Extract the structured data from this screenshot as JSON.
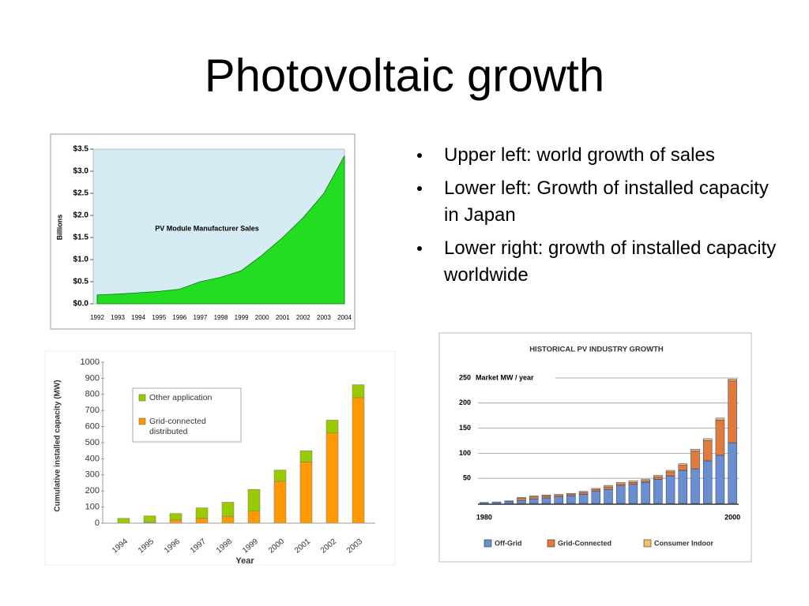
{
  "title": "Photovoltaic growth",
  "bullets": [
    "Upper left: world growth of sales",
    "Lower left: Growth of installed capacity in Japan",
    "Lower right: growth of installed capacity worldwide"
  ],
  "chart_data": [
    {
      "type": "area",
      "title": "PV Module Manufacturer Sales",
      "y_label": "Billions",
      "categories": [
        "1992",
        "1993",
        "1994",
        "1995",
        "1996",
        "1997",
        "1998",
        "1999",
        "2000",
        "2001",
        "2002",
        "2003",
        "2004"
      ],
      "values": [
        0.2,
        0.22,
        0.25,
        0.28,
        0.33,
        0.5,
        0.6,
        0.75,
        1.1,
        1.5,
        1.95,
        2.5,
        3.35
      ],
      "color": "#22dd22",
      "background": "#d6ecf5",
      "ylim": [
        0,
        3.5
      ],
      "yticks": [
        {
          "value": 0,
          "label": "$0.0"
        },
        {
          "value": 0.5,
          "label": "$0.5"
        },
        {
          "value": 1,
          "label": "$1.0"
        },
        {
          "value": 1.5,
          "label": "$1.5"
        },
        {
          "value": 2,
          "label": "$2.0"
        },
        {
          "value": 2.5,
          "label": "$2.5"
        },
        {
          "value": 3,
          "label": "$3.0"
        },
        {
          "value": 3.5,
          "label": "$3.5"
        }
      ]
    },
    {
      "type": "bar",
      "stacked": true,
      "y_label": "Cumulative installed capacity (MW)",
      "x_label": "Year",
      "categories": [
        "1994",
        "1995",
        "1996",
        "1997",
        "1998",
        "1999",
        "2000",
        "2001",
        "2002",
        "2003"
      ],
      "series": [
        {
          "name": "Grid-connected distributed",
          "color": "#ff9900",
          "values": [
            0,
            5,
            20,
            30,
            40,
            75,
            260,
            380,
            560,
            780
          ]
        },
        {
          "name": "Other application",
          "color": "#99cc00",
          "values": [
            30,
            40,
            40,
            65,
            90,
            135,
            70,
            70,
            80,
            80
          ]
        }
      ],
      "ylim": [
        0,
        1000
      ],
      "yticks": [
        0,
        100,
        200,
        300,
        400,
        500,
        600,
        700,
        800,
        900,
        1000
      ]
    },
    {
      "type": "bar",
      "stacked": true,
      "title": "HISTORICAL PV INDUSTRY GROWTH",
      "y_label": "Market MW / year",
      "grid": true,
      "categories": [
        "1980",
        null,
        null,
        null,
        null,
        null,
        null,
        null,
        null,
        null,
        null,
        null,
        null,
        null,
        null,
        null,
        null,
        null,
        null,
        null,
        "2000"
      ],
      "series": [
        {
          "name": "Off-Grid",
          "color": "#6a8fd0",
          "values": [
            2,
            3,
            4,
            6,
            9,
            11,
            13,
            15,
            18,
            24,
            28,
            35,
            38,
            42,
            48,
            55,
            66,
            69,
            85,
            96,
            121
          ]
        },
        {
          "name": "Grid-Connected",
          "color": "#e07b3c",
          "values": [
            0,
            0,
            0,
            4,
            4,
            4,
            3,
            3,
            4,
            4,
            5,
            4,
            4,
            3,
            5,
            8,
            10,
            35,
            40,
            70,
            123
          ]
        },
        {
          "name": "Consumer Indoor",
          "color": "#f5c060",
          "values": [
            0,
            0,
            1,
            2,
            2,
            2,
            2,
            2,
            2,
            2,
            3,
            3,
            3,
            3,
            3,
            3,
            3,
            4,
            4,
            4,
            4
          ]
        }
      ],
      "ylim": [
        0,
        250
      ],
      "yticks": [
        50,
        100,
        150,
        200,
        250
      ]
    }
  ]
}
